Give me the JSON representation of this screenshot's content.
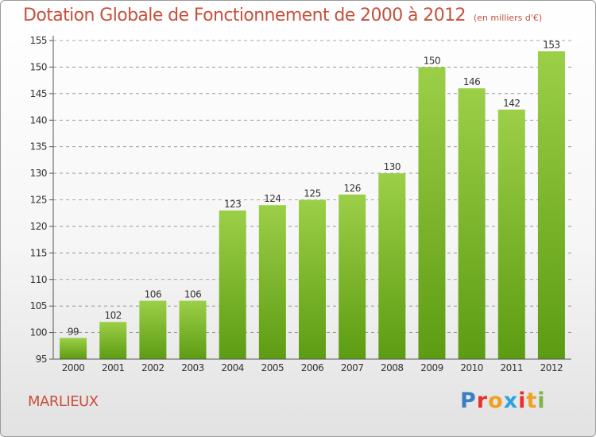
{
  "header": {
    "title": "Dotation Globale de Fonctionnement de 2000 à 2012",
    "unit": "(en milliers d'€)"
  },
  "footer": {
    "commune": "MARLIEUX",
    "logo": "Proxiti",
    "logo_colors": [
      "#3a7fc4",
      "#e8312f",
      "#f0a020",
      "#2aa4e0",
      "#e8312f",
      "#f0a020",
      "#7ab648"
    ]
  },
  "chart_data": {
    "type": "bar",
    "categories": [
      "2000",
      "2001",
      "2002",
      "2003",
      "2004",
      "2005",
      "2006",
      "2007",
      "2008",
      "2009",
      "2010",
      "2011",
      "2012"
    ],
    "values": [
      99,
      102,
      106,
      106,
      123,
      124,
      125,
      126,
      130,
      150,
      146,
      142,
      153
    ],
    "ylim": [
      95,
      155
    ],
    "yticks": [
      95,
      100,
      105,
      110,
      115,
      120,
      125,
      130,
      135,
      140,
      145,
      150,
      155
    ],
    "grid": true,
    "colors": {
      "bar_top": "#9ccf48",
      "bar_bottom": "#5c9c12",
      "grid": "#8a8a8a",
      "text": "#333333"
    }
  }
}
